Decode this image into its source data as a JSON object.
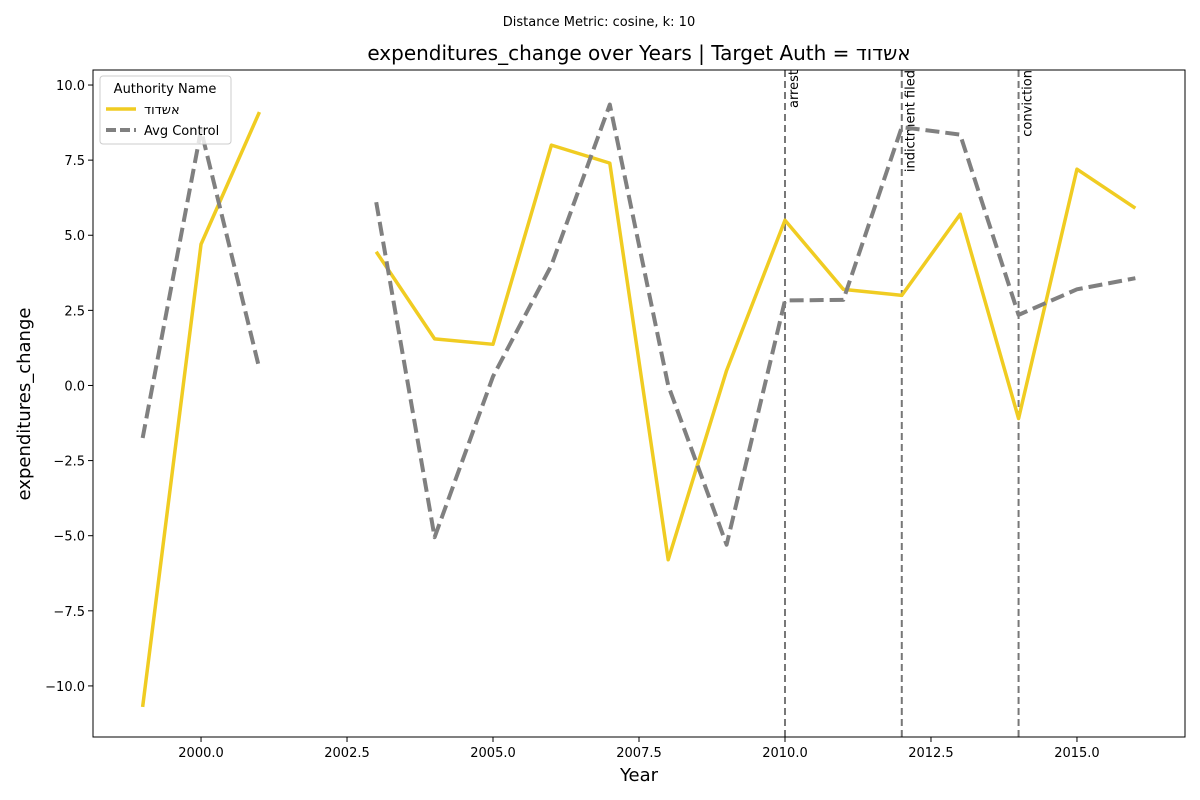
{
  "chart_data": {
    "type": "line",
    "suptitle": "Distance Metric: cosine, k: 10",
    "title": "expenditures_change over Years | Target Auth = אשדוד",
    "xlabel": "Year",
    "ylabel": "expenditures_change",
    "xlim": [
      1998.15,
      2016.85
    ],
    "ylim": [
      -11.7,
      10.5
    ],
    "xticks": [
      2000.0,
      2002.5,
      2005.0,
      2007.5,
      2010.0,
      2012.5,
      2015.0
    ],
    "xtick_labels": [
      "2000.0",
      "2002.5",
      "2005.0",
      "2007.5",
      "2010.0",
      "2012.5",
      "2015.0"
    ],
    "yticks": [
      10.0,
      7.5,
      5.0,
      2.5,
      0.0,
      -2.5,
      -5.0,
      -7.5,
      -10.0
    ],
    "ytick_labels": [
      "10.0",
      "7.5",
      "5.0",
      "2.5",
      "0.0",
      "−2.5",
      "−5.0",
      "−7.5",
      "−10.0"
    ],
    "legend": {
      "title": "Authority Name",
      "position": "upper-left"
    },
    "series": [
      {
        "name": "אשדוד",
        "color": "#F0CC22",
        "style": "solid",
        "x": [
          1999,
          2000,
          2001,
          2002,
          2003,
          2004,
          2005,
          2006,
          2007,
          2008,
          2009,
          2010,
          2011,
          2012,
          2013,
          2014,
          2015,
          2016
        ],
        "y": [
          -10.7,
          4.7,
          9.1,
          null,
          4.45,
          1.55,
          1.37,
          8.0,
          7.4,
          -5.8,
          0.5,
          5.5,
          3.2,
          3.0,
          5.7,
          -1.1,
          7.2,
          5.9
        ]
      },
      {
        "name": "Avg Control",
        "color": "#808080",
        "style": "dashed",
        "x": [
          1999,
          2000,
          2001,
          2002,
          2003,
          2004,
          2005,
          2006,
          2007,
          2008,
          2009,
          2010,
          2011,
          2012,
          2013,
          2014,
          2015,
          2016
        ],
        "y": [
          -1.75,
          8.5,
          0.55,
          null,
          6.1,
          -5.05,
          0.3,
          4.0,
          9.35,
          0.0,
          -5.3,
          2.83,
          2.85,
          8.6,
          8.35,
          2.35,
          3.2,
          3.57
        ]
      }
    ],
    "vlines": [
      {
        "x": 2010,
        "label": "arrest"
      },
      {
        "x": 2012,
        "label": "indictment filed"
      },
      {
        "x": 2014,
        "label": "conviction"
      }
    ]
  }
}
